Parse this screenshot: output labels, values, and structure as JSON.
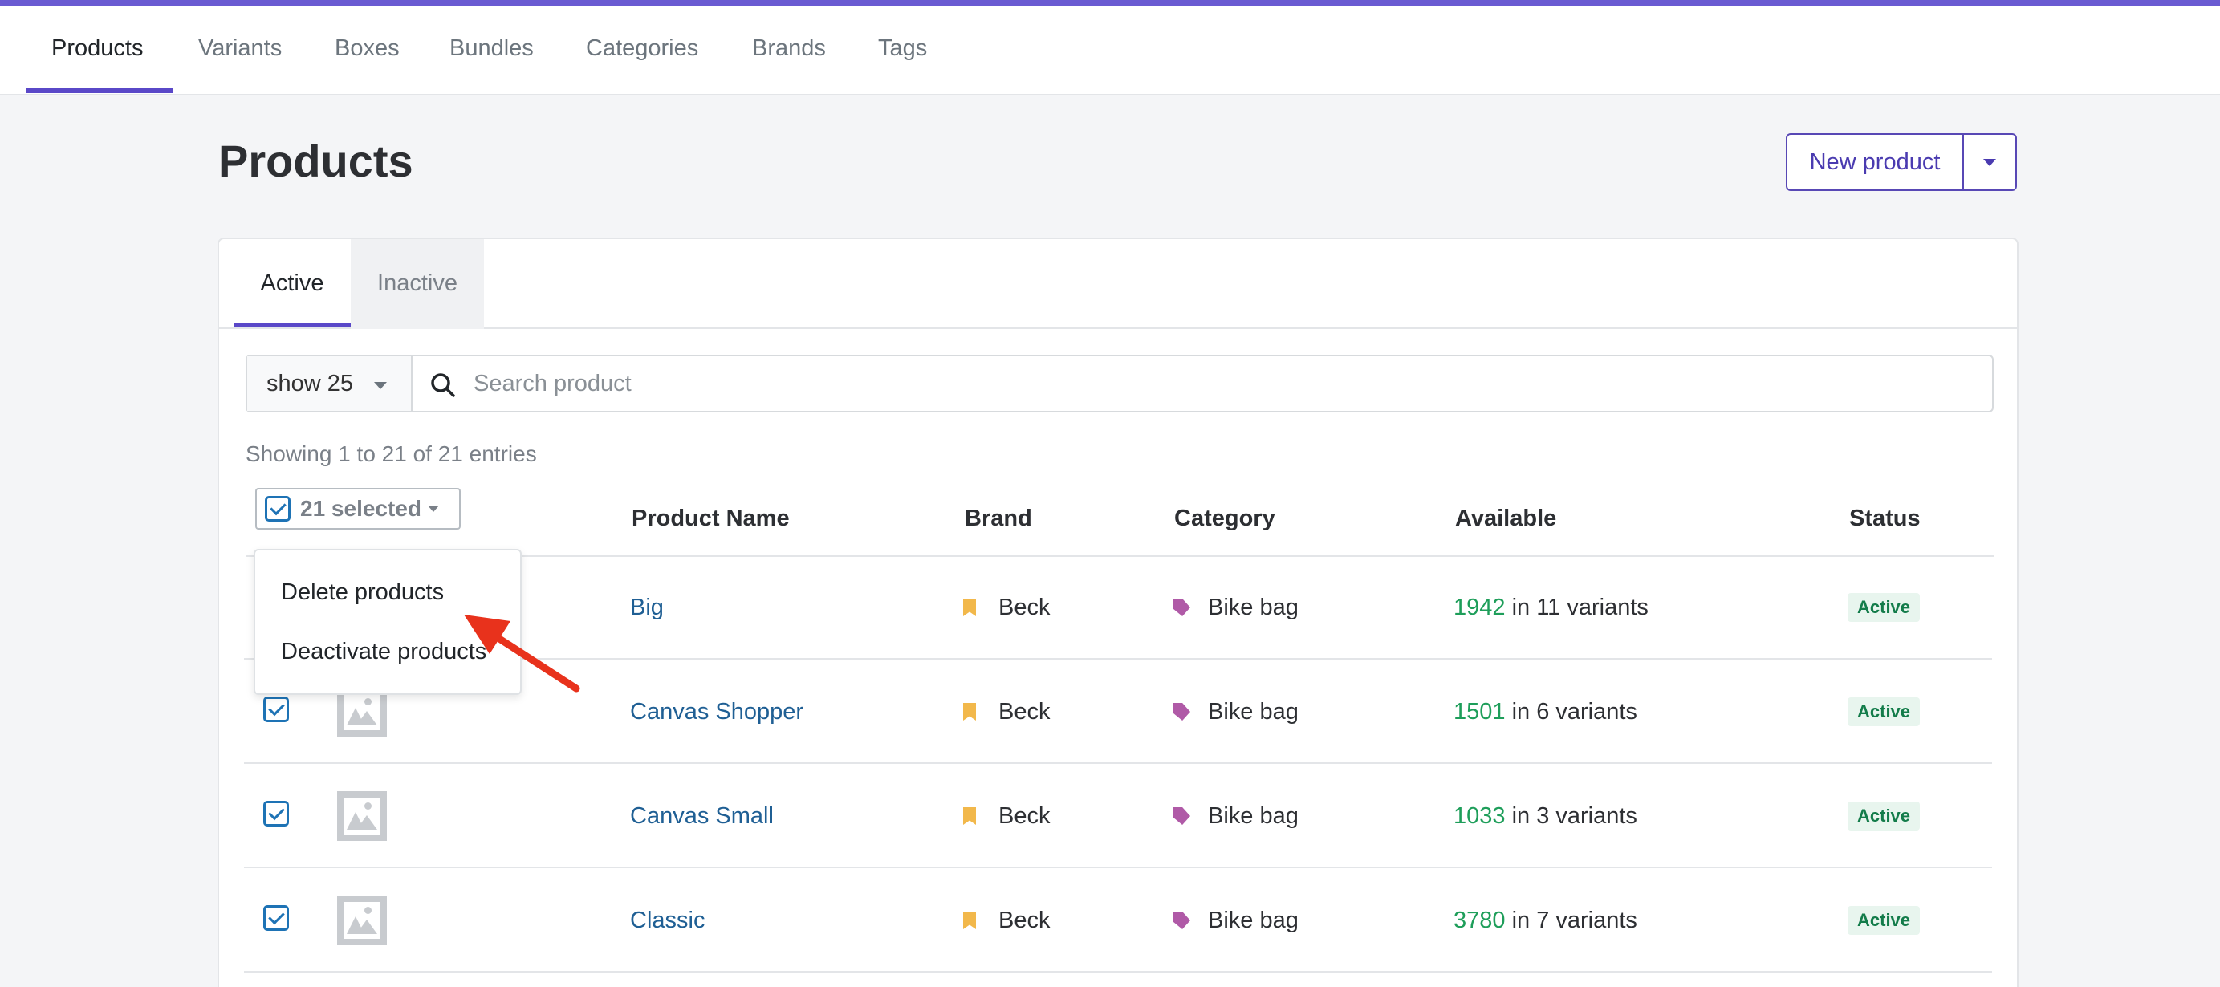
{
  "nav": {
    "items": [
      {
        "label": "Products",
        "active": true
      },
      {
        "label": "Variants"
      },
      {
        "label": "Boxes"
      },
      {
        "label": "Bundles"
      },
      {
        "label": "Categories"
      },
      {
        "label": "Brands"
      },
      {
        "label": "Tags"
      }
    ]
  },
  "page": {
    "title": "Products",
    "new_button": "New product"
  },
  "tabs": {
    "active": "Active",
    "inactive": "Inactive"
  },
  "toolbar": {
    "page_size": "show 25",
    "search_placeholder": "Search product"
  },
  "entries_text": "Showing 1 to 21 of 21 entries",
  "table": {
    "selection_label": "21 selected",
    "headers": {
      "name": "Product Name",
      "brand": "Brand",
      "category": "Category",
      "available": "Available",
      "status": "Status"
    },
    "rows": [
      {
        "name": "Big",
        "brand": "Beck",
        "category": "Bike bag",
        "available": "1942",
        "variants": " in 11 variants",
        "status": "Active"
      },
      {
        "name": "Canvas Shopper",
        "brand": "Beck",
        "category": "Bike bag",
        "available": "1501",
        "variants": " in 6 variants",
        "status": "Active"
      },
      {
        "name": "Canvas Small",
        "brand": "Beck",
        "category": "Bike bag",
        "available": "1033",
        "variants": " in 3 variants",
        "status": "Active"
      },
      {
        "name": "Classic",
        "brand": "Beck",
        "category": "Bike bag",
        "available": "3780",
        "variants": " in 7 variants",
        "status": "Active"
      }
    ]
  },
  "bulk_menu": {
    "delete": "Delete products",
    "deactivate": "Deactivate products"
  },
  "colors": {
    "accent": "#5a48c8",
    "link": "#1f5f94",
    "available": "#1e9e5a",
    "annotation_arrow": "#e8321c"
  }
}
